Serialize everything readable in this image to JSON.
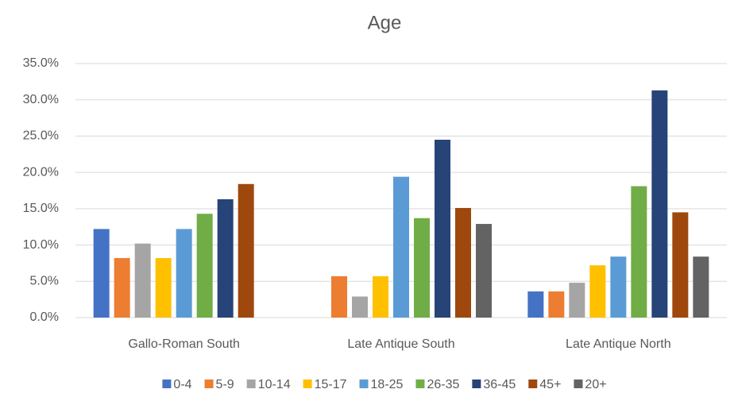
{
  "chart_data": {
    "type": "bar",
    "title": "Age",
    "categories": [
      "Gallo-Roman South",
      "Late Antique South",
      "Late Antique North"
    ],
    "series": [
      {
        "name": "0-4",
        "color": "#4472c4",
        "values": [
          12.2,
          null,
          3.6
        ]
      },
      {
        "name": "5-9",
        "color": "#ed7d31",
        "values": [
          8.2,
          5.7,
          3.6
        ]
      },
      {
        "name": "10-14",
        "color": "#a5a5a5",
        "values": [
          10.2,
          2.9,
          4.8
        ]
      },
      {
        "name": "15-17",
        "color": "#ffc000",
        "values": [
          8.2,
          5.7,
          7.2
        ]
      },
      {
        "name": "18-25",
        "color": "#5b9bd5",
        "values": [
          12.2,
          19.4,
          8.4
        ]
      },
      {
        "name": "26-35",
        "color": "#70ad47",
        "values": [
          14.3,
          13.7,
          18.1
        ]
      },
      {
        "name": "36-45",
        "color": "#264478",
        "values": [
          16.3,
          24.5,
          31.3
        ]
      },
      {
        "name": "45+",
        "color": "#9e480e",
        "values": [
          18.4,
          15.1,
          14.5
        ]
      },
      {
        "name": "20+",
        "color": "#636363",
        "values": [
          null,
          12.9,
          8.4
        ]
      }
    ],
    "ylim": [
      0,
      35
    ],
    "yticks": [
      {
        "value": 0,
        "label": "0.0%"
      },
      {
        "value": 5,
        "label": "5.0%"
      },
      {
        "value": 10,
        "label": "10.0%"
      },
      {
        "value": 15,
        "label": "15.0%"
      },
      {
        "value": 20,
        "label": "20.0%"
      },
      {
        "value": 25,
        "label": "25.0%"
      },
      {
        "value": 30,
        "label": "30.0%"
      },
      {
        "value": 35,
        "label": "35.0%"
      }
    ],
    "grid": true,
    "legend": "bottom"
  }
}
